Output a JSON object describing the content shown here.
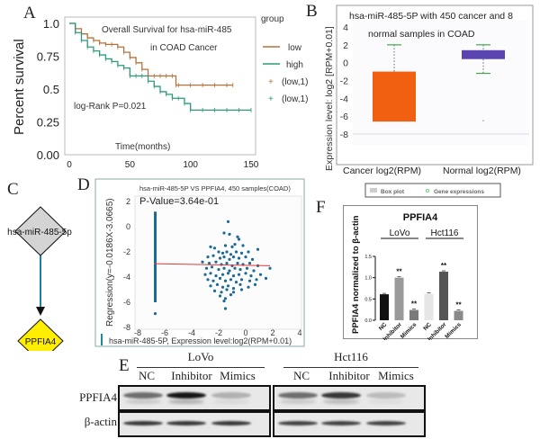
{
  "panels": {
    "A": {
      "letter": "A",
      "chart_data": {
        "type": "line",
        "title": "Overall Survival for hsa-miR-485",
        "subtitle": "in COAD Cancer",
        "xlabel": "Time(months)",
        "ylabel": "Percent survival",
        "xlim": [
          0,
          150
        ],
        "ylim": [
          0,
          1.0
        ],
        "x_ticks": [
          "0",
          "50",
          "100",
          "150"
        ],
        "y_ticks": [
          "0.00",
          "0.25",
          "0.5",
          "0.75",
          "1.0"
        ],
        "annotation": "log-Rank P=0.021",
        "legend_title": "group",
        "legend_position": "right",
        "legend": [
          {
            "label": "low",
            "color": "#b5713a",
            "symbol": "line"
          },
          {
            "label": "high",
            "color": "#2a9a7a",
            "symbol": "line"
          },
          {
            "label": "(low,1)",
            "color": "#b5713a",
            "symbol": "plus"
          },
          {
            "label": "(low,1)",
            "color": "#2a9a7a",
            "symbol": "plus"
          }
        ],
        "series": [
          {
            "name": "low",
            "color": "#b5713a",
            "x": [
              0,
              5,
              10,
              15,
              20,
              25,
              30,
              35,
              40,
              45,
              50,
              55,
              60,
              65,
              70,
              75,
              80,
              85,
              88,
              90,
              100,
              110,
              120,
              130,
              135
            ],
            "y": [
              1.0,
              0.96,
              0.92,
              0.89,
              0.87,
              0.85,
              0.84,
              0.84,
              0.82,
              0.78,
              0.74,
              0.7,
              0.65,
              0.6,
              0.6,
              0.6,
              0.6,
              0.6,
              0.53,
              0.53,
              0.53,
              0.53,
              0.53,
              0.53,
              0.53
            ]
          },
          {
            "name": "high",
            "color": "#2a9a7a",
            "x": [
              0,
              5,
              10,
              15,
              20,
              25,
              30,
              35,
              40,
              45,
              50,
              55,
              60,
              65,
              70,
              75,
              80,
              85,
              90,
              95,
              100,
              110,
              120,
              130,
              140,
              150
            ],
            "y": [
              1.0,
              0.93,
              0.87,
              0.82,
              0.79,
              0.76,
              0.73,
              0.71,
              0.68,
              0.66,
              0.6,
              0.6,
              0.6,
              0.56,
              0.52,
              0.48,
              0.46,
              0.43,
              0.43,
              0.39,
              0.34,
              0.34,
              0.34,
              0.34,
              0.34,
              0.34
            ]
          }
        ]
      }
    },
    "B": {
      "letter": "B",
      "chart_data": {
        "type": "box",
        "title_line1": "hsa-miR-485-5P with 450 cancer and 8",
        "title_line2": "normal samples in COAD",
        "ylabel": "Expression level: log2 [RPM+0.01]",
        "ylim": [
          -8,
          4
        ],
        "y_ticks": [
          "4",
          "2",
          "0",
          "-2",
          "-4",
          "-6",
          "-8"
        ],
        "categories": [
          "Cancer log2(RPM)",
          "Normal log2(RPM)"
        ],
        "boxes": [
          {
            "name": "Cancer log2(RPM)",
            "color": "#f06010",
            "whisker_high": 2.0,
            "q3": -1.0,
            "median": -6.6,
            "q1": -6.6,
            "whisker_low": -6.6
          },
          {
            "name": "Normal log2(RPM)",
            "color": "#5a45b0",
            "whisker_high": 2.0,
            "q3": 1.4,
            "median": 0.7,
            "q1": 0.4,
            "whisker_low": -1.2,
            "outliers": [
              -6.5
            ]
          }
        ],
        "legend": [
          "Box plot",
          "Gene expressions"
        ],
        "legend_position": "bottom"
      }
    },
    "C": {
      "letter": "C",
      "source_node": "hsa-miR-485-5p",
      "target_node": "PPFIA4",
      "source_color": "#d4d4d4",
      "target_color": "#ffee00",
      "edge_color": "#1e7fa5"
    },
    "D": {
      "letter": "D",
      "chart_data": {
        "type": "scatter",
        "title": "hsa-miR-485-5P VS PPFIA4, 450 samples(COAD)",
        "annotation": "P-Value=3.64e-01",
        "xlabel": "hsa-miR-485-5P, Expression level:log2(RPM+0.01)",
        "ylabel": "Regression(y=-0.0186X-3.0665)",
        "xlim": [
          -8,
          4
        ],
        "ylim": [
          -8,
          2
        ],
        "x_ticks": [
          "-8",
          "-6",
          "-4",
          "-2",
          "0",
          "2",
          "4"
        ],
        "y_ticks": [
          "2",
          "0",
          "-2",
          "-4",
          "-6",
          "-8"
        ],
        "regression": {
          "slope": -0.0186,
          "intercept": -3.0665,
          "x_range": [
            -6.8,
            1.8
          ],
          "color": "#e03a3a"
        },
        "point_color": "#1d6a98",
        "vertical_cluster": {
          "x": -6.7,
          "y_range": [
            -6.0,
            1.2
          ]
        },
        "points": [
          [
            -6.7,
            -6.9
          ],
          [
            -1.5,
            -6.5
          ],
          [
            -1.3,
            0.4
          ],
          [
            -1.6,
            -0.5
          ],
          [
            -1.2,
            -0.6
          ],
          [
            -0.6,
            -0.8
          ],
          [
            -0.5,
            -1.0
          ],
          [
            -2.6,
            -1.6
          ],
          [
            -2.3,
            -1.7
          ],
          [
            -1.5,
            -1.5
          ],
          [
            -1.0,
            -1.6
          ],
          [
            -0.8,
            -1.4
          ],
          [
            -0.2,
            -1.5
          ],
          [
            0.9,
            -1.8
          ],
          [
            -2.0,
            -2.0
          ],
          [
            -1.7,
            -2.1
          ],
          [
            -1.4,
            -2.0
          ],
          [
            -1.1,
            -2.2
          ],
          [
            -0.7,
            -2.0
          ],
          [
            -0.3,
            -2.1
          ],
          [
            0.2,
            -2.0
          ],
          [
            -2.8,
            -2.4
          ],
          [
            -2.4,
            -2.3
          ],
          [
            -1.9,
            -2.5
          ],
          [
            -1.6,
            -2.4
          ],
          [
            -1.2,
            -2.6
          ],
          [
            -0.9,
            -2.4
          ],
          [
            -0.5,
            -2.5
          ],
          [
            0.0,
            -2.4
          ],
          [
            0.5,
            -2.6
          ],
          [
            -3.2,
            -2.8
          ],
          [
            -2.7,
            -2.9
          ],
          [
            -2.2,
            -2.8
          ],
          [
            -1.8,
            -3.0
          ],
          [
            -1.4,
            -2.9
          ],
          [
            -1.0,
            -3.1
          ],
          [
            -0.6,
            -2.9
          ],
          [
            -0.2,
            -3.0
          ],
          [
            0.3,
            -2.9
          ],
          [
            0.9,
            -3.1
          ],
          [
            -2.9,
            -3.3
          ],
          [
            -2.5,
            -3.2
          ],
          [
            -2.0,
            -3.4
          ],
          [
            -1.6,
            -3.3
          ],
          [
            -1.2,
            -3.5
          ],
          [
            -0.8,
            -3.3
          ],
          [
            -0.4,
            -3.4
          ],
          [
            0.1,
            -3.3
          ],
          [
            0.6,
            -3.5
          ],
          [
            1.8,
            -3.3
          ],
          [
            -3.0,
            -3.8
          ],
          [
            -2.6,
            -3.7
          ],
          [
            -2.2,
            -3.9
          ],
          [
            -1.7,
            -3.8
          ],
          [
            -1.3,
            -3.7
          ],
          [
            -0.9,
            -3.9
          ],
          [
            -0.5,
            -3.8
          ],
          [
            0.0,
            -3.7
          ],
          [
            0.4,
            -3.9
          ],
          [
            1.1,
            -3.8
          ],
          [
            -2.8,
            -4.2
          ],
          [
            -2.4,
            -4.3
          ],
          [
            -1.9,
            -4.1
          ],
          [
            -1.5,
            -4.3
          ],
          [
            -1.1,
            -4.2
          ],
          [
            -0.7,
            -4.4
          ],
          [
            -0.3,
            -4.2
          ],
          [
            0.3,
            -4.3
          ],
          [
            0.8,
            -4.2
          ],
          [
            1.5,
            -4.1
          ],
          [
            -2.6,
            -4.7
          ],
          [
            -2.1,
            -4.6
          ],
          [
            -1.7,
            -4.8
          ],
          [
            -1.3,
            -4.7
          ],
          [
            -0.9,
            -4.9
          ],
          [
            -0.4,
            -4.6
          ],
          [
            0.2,
            -4.8
          ],
          [
            0.7,
            -4.6
          ],
          [
            -2.3,
            -5.1
          ],
          [
            -1.8,
            -5.2
          ],
          [
            -1.4,
            -5.0
          ],
          [
            -0.9,
            -5.2
          ],
          [
            -0.3,
            -5.0
          ],
          [
            -1.9,
            -5.5
          ],
          [
            -1.5,
            -5.7
          ],
          [
            -1.1,
            -5.4
          ],
          [
            -1.6,
            -5.9
          ]
        ]
      }
    },
    "E": {
      "letter": "E",
      "groups": [
        "LoVo",
        "Hct116"
      ],
      "lanes": [
        "NC",
        "Inhibitor",
        "Mimics",
        "NC",
        "Inhibitor",
        "Mimics"
      ],
      "rows": [
        "PPFIA4",
        "β-actin"
      ],
      "band_intensity": {
        "PPFIA4": [
          0.55,
          0.95,
          0.25,
          0.55,
          0.8,
          0.2
        ],
        "β-actin": [
          0.8,
          0.8,
          0.8,
          0.75,
          0.75,
          0.75
        ]
      }
    },
    "F": {
      "letter": "F",
      "chart_data": {
        "type": "bar",
        "title": "PPFIA4",
        "ylabel": "PPFIA4 normalized to β-actin",
        "ylim": [
          0,
          1.5
        ],
        "y_ticks": [
          "0.0",
          "0.5",
          "1.0",
          "1.5"
        ],
        "groups": [
          "LoVo",
          "Hct116"
        ],
        "categories": [
          "NC",
          "Inhibitor",
          "Mimics",
          "NC",
          "Inhibitor",
          "Mimics"
        ],
        "values": [
          0.61,
          1.0,
          0.24,
          0.62,
          1.14,
          0.22
        ],
        "colors": [
          "#111111",
          "#9a9a9a",
          "#7a7a7a",
          "#e6e6e6",
          "#555555",
          "#8a8a8a"
        ],
        "significance": [
          "",
          "**",
          "**",
          "",
          "**",
          "**"
        ]
      }
    }
  }
}
